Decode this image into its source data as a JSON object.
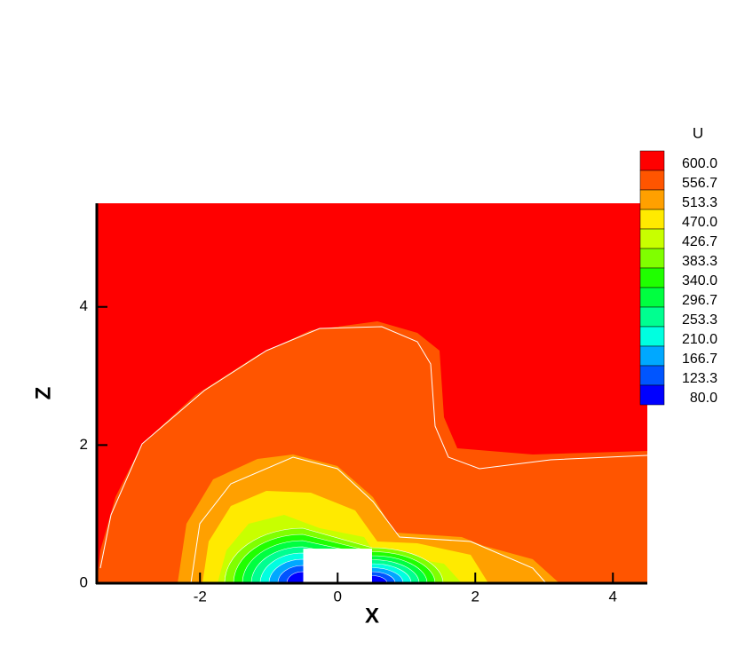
{
  "chart_data": {
    "type": "contour",
    "legend_title": "U",
    "xlabel": "X",
    "ylabel": "Z",
    "xlim": [
      -3.5,
      4.5
    ],
    "ylim": [
      0,
      5.5
    ],
    "xticks": [
      -2,
      0,
      2,
      4
    ],
    "yticks": [
      0,
      2,
      4
    ],
    "levels": [
      {
        "value": 600,
        "label": "600.0"
      },
      {
        "value": 556.7,
        "label": "556.7"
      },
      {
        "value": 513.3,
        "label": "513.3"
      },
      {
        "value": 470,
        "label": "470.0"
      },
      {
        "value": 426.7,
        "label": "426.7"
      },
      {
        "value": 383.3,
        "label": "383.3"
      },
      {
        "value": 340,
        "label": "340.0"
      },
      {
        "value": 296.7,
        "label": "296.7"
      },
      {
        "value": 253.3,
        "label": "253.3"
      },
      {
        "value": 210,
        "label": "210.0"
      },
      {
        "value": 166.7,
        "label": "166.7"
      },
      {
        "value": 123.3,
        "label": "123.3"
      },
      {
        "value": 80,
        "label": "80.0"
      }
    ],
    "colors": [
      "#ff0000",
      "#ff5500",
      "#ffa000",
      "#ffea00",
      "#c8ff00",
      "#80ff00",
      "#20ff00",
      "#00ff40",
      "#00ff90",
      "#00ffe0",
      "#00a8ff",
      "#0055ff",
      "#0000ff"
    ]
  }
}
